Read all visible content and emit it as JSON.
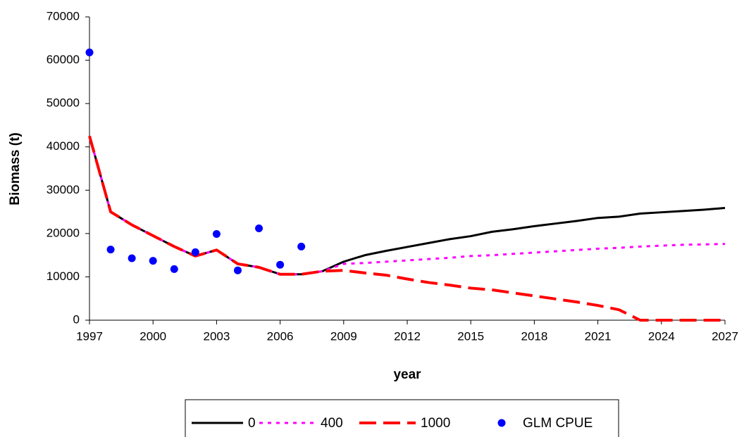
{
  "chart_data": {
    "type": "line",
    "x_label": "year",
    "y_label": "Biomass (t)",
    "x": [
      1997,
      1998,
      1999,
      2000,
      2001,
      2002,
      2003,
      2004,
      2005,
      2006,
      2007,
      2008,
      2009,
      2010,
      2011,
      2012,
      2013,
      2014,
      2015,
      2016,
      2017,
      2018,
      2019,
      2020,
      2021,
      2022,
      2023,
      2024,
      2025,
      2026,
      2027
    ],
    "xlim": [
      1997,
      2027
    ],
    "xticks": [
      1997,
      2000,
      2003,
      2006,
      2009,
      2012,
      2015,
      2018,
      2021,
      2024,
      2027
    ],
    "ylim": [
      0,
      70000
    ],
    "yticks": [
      0,
      10000,
      20000,
      30000,
      40000,
      50000,
      60000,
      70000
    ],
    "grid": false,
    "legend": "bottom",
    "series": [
      {
        "name": "0",
        "color": "#000000",
        "style": "solid",
        "values": [
          42500,
          25000,
          22000,
          19500,
          17000,
          14800,
          16200,
          13000,
          12200,
          10600,
          10600,
          11300,
          13500,
          15000,
          16000,
          16900,
          17800,
          18700,
          19400,
          20400,
          21000,
          21700,
          22300,
          22900,
          23600,
          23900,
          24600,
          24900,
          25200,
          25500,
          25900
        ]
      },
      {
        "name": "400",
        "color": "#ff00ff",
        "style": "dotted",
        "values": [
          42500,
          25000,
          22000,
          19500,
          17000,
          14800,
          16200,
          13000,
          12200,
          10600,
          10600,
          11300,
          13000,
          13200,
          13500,
          13800,
          14100,
          14400,
          14800,
          15000,
          15300,
          15600,
          15900,
          16200,
          16500,
          16700,
          17000,
          17200,
          17400,
          17500,
          17600
        ]
      },
      {
        "name": "1000",
        "color": "#ff0000",
        "style": "dashed",
        "values": [
          42500,
          25000,
          22000,
          19500,
          17000,
          14800,
          16200,
          13000,
          12200,
          10600,
          10600,
          11300,
          11500,
          10900,
          10400,
          9500,
          8700,
          8100,
          7400,
          7000,
          6300,
          5600,
          4900,
          4200,
          3400,
          2400,
          0,
          0,
          0,
          0,
          0
        ]
      },
      {
        "name": "GLM CPUE",
        "color": "#0000ff",
        "style": "marker",
        "values": [
          61800,
          16300,
          14300,
          13700,
          11800,
          15700,
          19900,
          11500,
          21200,
          12800,
          17000,
          null,
          null,
          null,
          null,
          null,
          null,
          null,
          null,
          null,
          null,
          null,
          null,
          null,
          null,
          null,
          null,
          null,
          null,
          null,
          null
        ]
      }
    ]
  }
}
